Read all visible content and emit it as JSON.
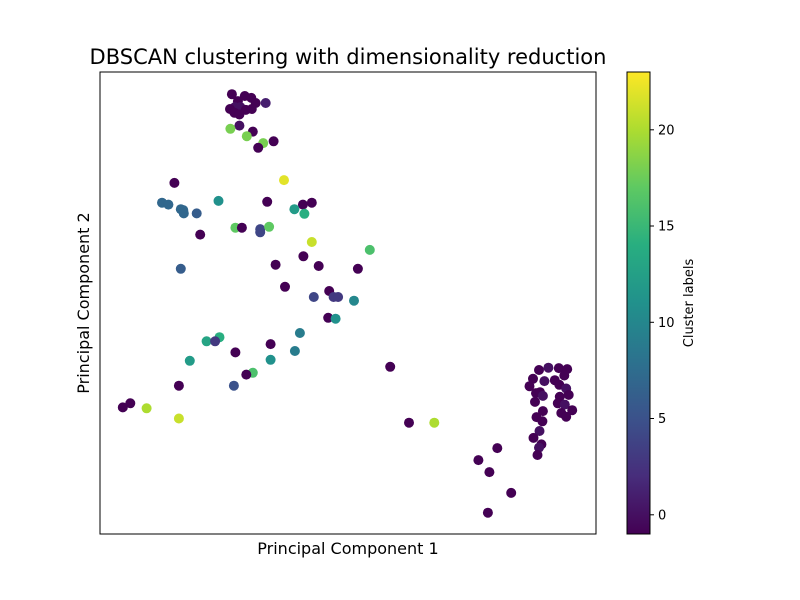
{
  "chart_data": {
    "type": "scatter",
    "title": "DBSCAN clustering with dimensionality reduction",
    "xlabel": "Principal Component 1",
    "ylabel": "Principal Component 2",
    "xlim": [
      0,
      100
    ],
    "ylim": [
      0,
      100
    ],
    "x_ticks_shown": false,
    "y_ticks_shown": false,
    "grid": false,
    "colorbar": {
      "label": "Cluster labels",
      "colormap": "viridis",
      "range": [
        -1,
        23
      ],
      "ticks": [
        0,
        5,
        10,
        15,
        20
      ]
    },
    "points": [
      {
        "x": 26.6,
        "y": 95.2,
        "label": -1
      },
      {
        "x": 29.2,
        "y": 94.8,
        "label": -1
      },
      {
        "x": 30.5,
        "y": 94.4,
        "label": -1
      },
      {
        "x": 27.8,
        "y": 93.7,
        "label": -1
      },
      {
        "x": 31.4,
        "y": 93.3,
        "label": -1
      },
      {
        "x": 33.4,
        "y": 93.3,
        "label": 1
      },
      {
        "x": 27.2,
        "y": 92.4,
        "label": 0
      },
      {
        "x": 28.3,
        "y": 92.4,
        "label": 0
      },
      {
        "x": 26.2,
        "y": 92.0,
        "label": -1
      },
      {
        "x": 29.4,
        "y": 91.8,
        "label": -1
      },
      {
        "x": 30.6,
        "y": 92.0,
        "label": -1
      },
      {
        "x": 27.1,
        "y": 91.2,
        "label": -1
      },
      {
        "x": 28.1,
        "y": 90.8,
        "label": -1
      },
      {
        "x": 28.1,
        "y": 88.4,
        "label": 0
      },
      {
        "x": 26.3,
        "y": 87.7,
        "label": 18
      },
      {
        "x": 30.8,
        "y": 87.1,
        "label": -1
      },
      {
        "x": 29.6,
        "y": 86.1,
        "label": 18
      },
      {
        "x": 35.0,
        "y": 85.0,
        "label": -1
      },
      {
        "x": 32.9,
        "y": 84.6,
        "label": 18
      },
      {
        "x": 31.9,
        "y": 83.6,
        "label": -1
      },
      {
        "x": 37.1,
        "y": 76.6,
        "label": 22
      },
      {
        "x": 15.0,
        "y": 76.0,
        "label": -1
      },
      {
        "x": 12.5,
        "y": 71.7,
        "label": 7
      },
      {
        "x": 13.8,
        "y": 71.3,
        "label": 7
      },
      {
        "x": 16.3,
        "y": 70.3,
        "label": 7
      },
      {
        "x": 16.8,
        "y": 70.1,
        "label": 7
      },
      {
        "x": 16.9,
        "y": 69.4,
        "label": 7
      },
      {
        "x": 19.5,
        "y": 69.4,
        "label": 6
      },
      {
        "x": 23.9,
        "y": 72.1,
        "label": 11
      },
      {
        "x": 33.7,
        "y": 71.9,
        "label": -1
      },
      {
        "x": 40.9,
        "y": 71.3,
        "label": -1
      },
      {
        "x": 42.7,
        "y": 71.7,
        "label": -1
      },
      {
        "x": 39.2,
        "y": 70.3,
        "label": 12
      },
      {
        "x": 41.2,
        "y": 69.3,
        "label": 14
      },
      {
        "x": 20.2,
        "y": 64.8,
        "label": -1
      },
      {
        "x": 27.3,
        "y": 66.3,
        "label": 17
      },
      {
        "x": 28.6,
        "y": 66.3,
        "label": -1
      },
      {
        "x": 32.3,
        "y": 66.0,
        "label": 4
      },
      {
        "x": 32.3,
        "y": 65.3,
        "label": 4
      },
      {
        "x": 34.1,
        "y": 66.5,
        "label": 17
      },
      {
        "x": 42.7,
        "y": 63.2,
        "label": 21
      },
      {
        "x": 54.4,
        "y": 61.5,
        "label": 16
      },
      {
        "x": 16.3,
        "y": 57.4,
        "label": 6
      },
      {
        "x": 35.4,
        "y": 58.3,
        "label": -1
      },
      {
        "x": 41.0,
        "y": 60.1,
        "label": -1
      },
      {
        "x": 44.1,
        "y": 58.0,
        "label": -1
      },
      {
        "x": 52.0,
        "y": 57.4,
        "label": -1
      },
      {
        "x": 37.3,
        "y": 53.5,
        "label": -1
      },
      {
        "x": 46.2,
        "y": 52.6,
        "label": -1
      },
      {
        "x": 47.1,
        "y": 51.3,
        "label": 3
      },
      {
        "x": 43.1,
        "y": 51.3,
        "label": 4
      },
      {
        "x": 48.0,
        "y": 51.3,
        "label": 3
      },
      {
        "x": 51.2,
        "y": 50.5,
        "label": 10
      },
      {
        "x": 46.0,
        "y": 46.8,
        "label": -1
      },
      {
        "x": 47.5,
        "y": 46.6,
        "label": 11
      },
      {
        "x": 40.3,
        "y": 43.5,
        "label": 9
      },
      {
        "x": 34.4,
        "y": 41.1,
        "label": -1
      },
      {
        "x": 24.1,
        "y": 42.6,
        "label": 14
      },
      {
        "x": 21.5,
        "y": 41.7,
        "label": 13
      },
      {
        "x": 23.2,
        "y": 41.7,
        "label": 3
      },
      {
        "x": 27.3,
        "y": 39.3,
        "label": -1
      },
      {
        "x": 18.1,
        "y": 37.5,
        "label": 12
      },
      {
        "x": 34.4,
        "y": 37.7,
        "label": 11
      },
      {
        "x": 39.3,
        "y": 39.6,
        "label": 9
      },
      {
        "x": 58.5,
        "y": 36.2,
        "label": -1
      },
      {
        "x": 30.8,
        "y": 34.9,
        "label": 16
      },
      {
        "x": 29.5,
        "y": 34.5,
        "label": -1
      },
      {
        "x": 15.9,
        "y": 32.1,
        "label": -1
      },
      {
        "x": 27.0,
        "y": 32.1,
        "label": 5
      },
      {
        "x": 6.1,
        "y": 28.3,
        "label": -1
      },
      {
        "x": 4.6,
        "y": 27.4,
        "label": -1
      },
      {
        "x": 9.4,
        "y": 27.2,
        "label": 20
      },
      {
        "x": 15.9,
        "y": 25.0,
        "label": 21
      },
      {
        "x": 62.3,
        "y": 24.1,
        "label": -1
      },
      {
        "x": 67.4,
        "y": 24.1,
        "label": 20
      },
      {
        "x": 88.5,
        "y": 35.5,
        "label": -1
      },
      {
        "x": 90.4,
        "y": 36.0,
        "label": 0
      },
      {
        "x": 92.5,
        "y": 35.9,
        "label": -1
      },
      {
        "x": 87.3,
        "y": 33.6,
        "label": -1
      },
      {
        "x": 89.6,
        "y": 33.1,
        "label": 0
      },
      {
        "x": 93.6,
        "y": 34.3,
        "label": -1
      },
      {
        "x": 94.2,
        "y": 35.7,
        "label": -1
      },
      {
        "x": 91.7,
        "y": 33.3,
        "label": -1
      },
      {
        "x": 86.6,
        "y": 32.0,
        "label": -1
      },
      {
        "x": 92.6,
        "y": 32.3,
        "label": -1
      },
      {
        "x": 94.0,
        "y": 31.5,
        "label": 0
      },
      {
        "x": 87.9,
        "y": 30.5,
        "label": -1
      },
      {
        "x": 88.7,
        "y": 30.7,
        "label": -1
      },
      {
        "x": 89.3,
        "y": 29.9,
        "label": 0
      },
      {
        "x": 92.7,
        "y": 29.7,
        "label": -1
      },
      {
        "x": 94.5,
        "y": 30.1,
        "label": -1
      },
      {
        "x": 87.7,
        "y": 28.6,
        "label": -1
      },
      {
        "x": 92.3,
        "y": 28.3,
        "label": -1
      },
      {
        "x": 93.7,
        "y": 28.0,
        "label": 0
      },
      {
        "x": 95.2,
        "y": 26.8,
        "label": -1
      },
      {
        "x": 89.3,
        "y": 26.6,
        "label": -1
      },
      {
        "x": 93.0,
        "y": 26.2,
        "label": -1
      },
      {
        "x": 94.0,
        "y": 25.4,
        "label": -1
      },
      {
        "x": 88.0,
        "y": 25.3,
        "label": -1
      },
      {
        "x": 89.2,
        "y": 24.4,
        "label": -1
      },
      {
        "x": 88.6,
        "y": 22.3,
        "label": 0
      },
      {
        "x": 87.4,
        "y": 20.8,
        "label": -1
      },
      {
        "x": 89.0,
        "y": 19.4,
        "label": -1
      },
      {
        "x": 88.5,
        "y": 18.7,
        "label": 0
      },
      {
        "x": 88.2,
        "y": 17.1,
        "label": -1
      },
      {
        "x": 80.1,
        "y": 18.6,
        "label": -1
      },
      {
        "x": 76.3,
        "y": 16.0,
        "label": -1
      },
      {
        "x": 78.5,
        "y": 13.4,
        "label": -1
      },
      {
        "x": 82.9,
        "y": 8.9,
        "label": -1
      },
      {
        "x": 78.2,
        "y": 4.6,
        "label": -1
      }
    ]
  }
}
